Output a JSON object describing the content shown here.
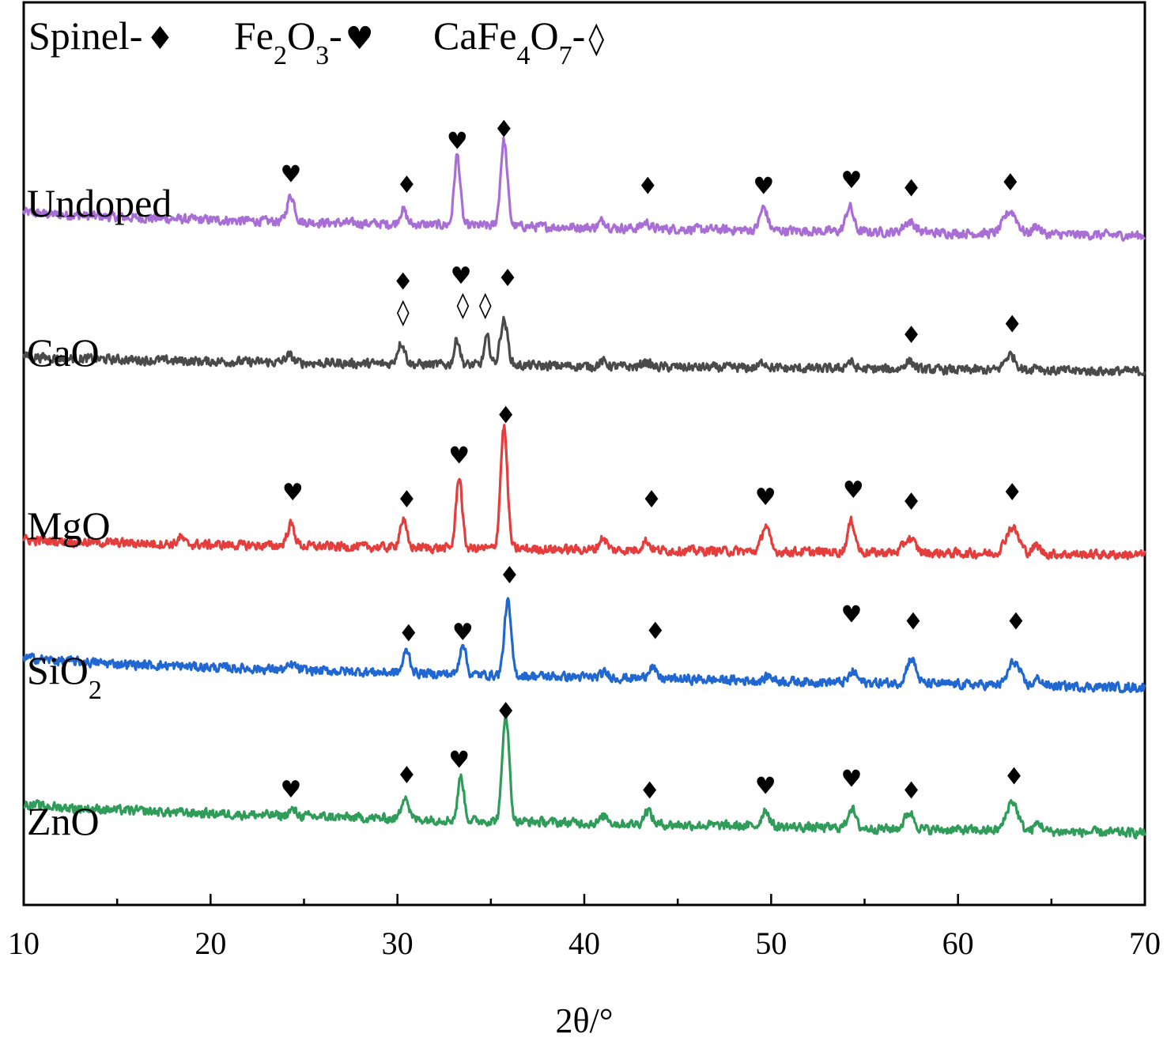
{
  "chart_data": {
    "type": "line",
    "xlabel": "2θ/°",
    "ylabel": "",
    "xlim": [
      10,
      70
    ],
    "x_ticks": [
      10,
      20,
      30,
      40,
      50,
      60,
      70
    ],
    "legend": {
      "placement": "top-left",
      "entries": [
        {
          "label_parts": [
            {
              "t": "Spinel-",
              "s": ""
            }
          ],
          "symbol": "♦"
        },
        {
          "label_parts": [
            {
              "t": "Fe",
              "s": ""
            },
            {
              "t": "2",
              "s": "sub"
            },
            {
              "t": "O",
              "s": ""
            },
            {
              "t": "3",
              "s": "sub"
            },
            {
              "t": "-",
              "s": ""
            }
          ],
          "symbol": "♥"
        },
        {
          "label_parts": [
            {
              "t": "CaFe",
              "s": ""
            },
            {
              "t": "4",
              "s": "sub"
            },
            {
              "t": "O",
              "s": ""
            },
            {
              "t": "7",
              "s": "sub"
            },
            {
              "t": "-",
              "s": ""
            }
          ],
          "symbol": "◊"
        }
      ]
    },
    "symbols": {
      "spinel": "♦",
      "fe2o3": "♥",
      "cafe4o7": "◊"
    },
    "series": [
      {
        "name": "Undoped",
        "name_parts": [
          {
            "t": "Undoped",
            "s": ""
          }
        ],
        "color": "#a86ed6",
        "baseline_left": 2.0,
        "baseline_right": 0.0,
        "peaks": [
          [
            24.3,
            2.2,
            0.2
          ],
          [
            30.3,
            1.2,
            0.18
          ],
          [
            33.2,
            5.9,
            0.16
          ],
          [
            35.7,
            7.2,
            0.18
          ],
          [
            41.0,
            0.6,
            0.2
          ],
          [
            43.3,
            0.5,
            0.2
          ],
          [
            49.6,
            1.9,
            0.2
          ],
          [
            54.2,
            2.1,
            0.2
          ],
          [
            57.4,
            0.9,
            0.3
          ],
          [
            62.8,
            1.9,
            0.35
          ],
          [
            64.2,
            0.7,
            0.2
          ]
        ],
        "markers": [
          {
            "x": 24.3,
            "h": 4.5,
            "sym": "fe2o3"
          },
          {
            "x": 30.5,
            "h": 3.6,
            "sym": "spinel"
          },
          {
            "x": 33.2,
            "h": 7.3,
            "sym": "fe2o3"
          },
          {
            "x": 35.7,
            "h": 8.3,
            "sym": "spinel"
          },
          {
            "x": 43.4,
            "h": 3.5,
            "sym": "spinel"
          },
          {
            "x": 49.6,
            "h": 3.5,
            "sym": "fe2o3"
          },
          {
            "x": 54.3,
            "h": 4.0,
            "sym": "fe2o3"
          },
          {
            "x": 57.5,
            "h": 3.3,
            "sym": "spinel"
          },
          {
            "x": 62.8,
            "h": 3.8,
            "sym": "spinel"
          }
        ]
      },
      {
        "name": "CaO",
        "name_parts": [
          {
            "t": "CaO",
            "s": ""
          }
        ],
        "color": "#4a4a4a",
        "baseline_left": 1.3,
        "baseline_right": 0.0,
        "peaks": [
          [
            24.2,
            0.6,
            0.2
          ],
          [
            30.2,
            1.8,
            0.2
          ],
          [
            33.2,
            2.2,
            0.15
          ],
          [
            34.8,
            2.3,
            0.15
          ],
          [
            35.7,
            3.8,
            0.2
          ],
          [
            41.0,
            0.4,
            0.2
          ],
          [
            43.3,
            0.4,
            0.2
          ],
          [
            49.6,
            0.5,
            0.2
          ],
          [
            54.2,
            0.6,
            0.2
          ],
          [
            57.4,
            0.7,
            0.25
          ],
          [
            62.8,
            1.3,
            0.3
          ],
          [
            64.2,
            0.4,
            0.2
          ]
        ],
        "markers": [
          {
            "x": 30.3,
            "h": 6.9,
            "sym": "spinel"
          },
          {
            "x": 30.3,
            "h": 4.3,
            "sym": "cafe4o7"
          },
          {
            "x": 33.4,
            "h": 7.4,
            "sym": "fe2o3"
          },
          {
            "x": 33.5,
            "h": 4.9,
            "sym": "cafe4o7"
          },
          {
            "x": 34.7,
            "h": 4.9,
            "sym": "cafe4o7"
          },
          {
            "x": 35.9,
            "h": 7.2,
            "sym": "spinel"
          },
          {
            "x": 57.5,
            "h": 2.4,
            "sym": "spinel"
          },
          {
            "x": 62.9,
            "h": 3.3,
            "sym": "spinel"
          }
        ]
      },
      {
        "name": "MgO",
        "name_parts": [
          {
            "t": "MgO",
            "s": ""
          }
        ],
        "color": "#e53c3c",
        "baseline_left": 1.3,
        "baseline_right": 0.0,
        "peaks": [
          [
            18.4,
            0.6,
            0.15
          ],
          [
            24.3,
            1.8,
            0.2
          ],
          [
            30.3,
            2.3,
            0.18
          ],
          [
            33.3,
            6.1,
            0.16
          ],
          [
            35.7,
            10.3,
            0.18
          ],
          [
            41.0,
            1.0,
            0.2
          ],
          [
            43.3,
            0.8,
            0.2
          ],
          [
            49.7,
            2.2,
            0.2
          ],
          [
            54.3,
            2.6,
            0.2
          ],
          [
            57.4,
            1.2,
            0.3
          ],
          [
            62.9,
            2.2,
            0.35
          ],
          [
            64.2,
            0.7,
            0.2
          ]
        ],
        "markers": [
          {
            "x": 24.4,
            "h": 4.6,
            "sym": "fe2o3"
          },
          {
            "x": 30.5,
            "h": 4.0,
            "sym": "spinel"
          },
          {
            "x": 33.3,
            "h": 7.7,
            "sym": "fe2o3"
          },
          {
            "x": 35.8,
            "h": 11.1,
            "sym": "spinel"
          },
          {
            "x": 43.6,
            "h": 4.0,
            "sym": "spinel"
          },
          {
            "x": 49.7,
            "h": 4.2,
            "sym": "fe2o3"
          },
          {
            "x": 54.4,
            "h": 4.8,
            "sym": "fe2o3"
          },
          {
            "x": 57.5,
            "h": 3.8,
            "sym": "spinel"
          },
          {
            "x": 62.9,
            "h": 4.6,
            "sym": "spinel"
          }
        ]
      },
      {
        "name": "SiO2",
        "name_parts": [
          {
            "t": "SiO",
            "s": ""
          },
          {
            "t": "2",
            "s": "sub"
          }
        ],
        "color": "#2167d1",
        "baseline_left": 2.6,
        "baseline_right": 0.0,
        "peaks": [
          [
            24.4,
            0.4,
            0.2
          ],
          [
            30.5,
            1.9,
            0.18
          ],
          [
            33.5,
            2.7,
            0.16
          ],
          [
            35.9,
            6.2,
            0.18
          ],
          [
            41.1,
            0.4,
            0.2
          ],
          [
            43.6,
            1.0,
            0.2
          ],
          [
            49.9,
            0.4,
            0.2
          ],
          [
            54.4,
            0.9,
            0.2
          ],
          [
            57.5,
            2.1,
            0.25
          ],
          [
            63.0,
            2.0,
            0.3
          ],
          [
            64.3,
            0.6,
            0.2
          ]
        ],
        "markers": [
          {
            "x": 30.6,
            "h": 3.9,
            "sym": "spinel"
          },
          {
            "x": 33.5,
            "h": 4.0,
            "sym": "fe2o3"
          },
          {
            "x": 36.0,
            "h": 8.8,
            "sym": "spinel"
          },
          {
            "x": 43.8,
            "h": 4.1,
            "sym": "spinel"
          },
          {
            "x": 54.3,
            "h": 5.5,
            "sym": "fe2o3"
          },
          {
            "x": 57.6,
            "h": 4.9,
            "sym": "spinel"
          },
          {
            "x": 63.1,
            "h": 4.9,
            "sym": "spinel"
          }
        ]
      },
      {
        "name": "ZnO",
        "name_parts": [
          {
            "t": "ZnO",
            "s": ""
          }
        ],
        "color": "#2f9c5a",
        "baseline_left": 2.5,
        "baseline_right": 0.0,
        "peaks": [
          [
            24.4,
            0.5,
            0.2
          ],
          [
            30.4,
            2.0,
            0.18
          ],
          [
            33.4,
            3.7,
            0.16
          ],
          [
            35.8,
            9.1,
            0.18
          ],
          [
            41.1,
            0.6,
            0.2
          ],
          [
            43.4,
            1.2,
            0.2
          ],
          [
            49.7,
            1.4,
            0.2
          ],
          [
            54.3,
            1.7,
            0.2
          ],
          [
            57.4,
            1.4,
            0.25
          ],
          [
            62.9,
            2.5,
            0.3
          ],
          [
            64.3,
            0.7,
            0.2
          ]
        ],
        "markers": [
          {
            "x": 24.3,
            "h": 3.0,
            "sym": "fe2o3"
          },
          {
            "x": 30.5,
            "h": 4.2,
            "sym": "spinel"
          },
          {
            "x": 33.3,
            "h": 5.5,
            "sym": "fe2o3"
          },
          {
            "x": 35.8,
            "h": 9.6,
            "sym": "spinel"
          },
          {
            "x": 43.5,
            "h": 2.9,
            "sym": "spinel"
          },
          {
            "x": 49.7,
            "h": 3.3,
            "sym": "fe2o3"
          },
          {
            "x": 54.3,
            "h": 3.9,
            "sym": "fe2o3"
          },
          {
            "x": 57.5,
            "h": 2.9,
            "sym": "spinel"
          },
          {
            "x": 63.0,
            "h": 4.1,
            "sym": "spinel"
          }
        ]
      }
    ]
  }
}
